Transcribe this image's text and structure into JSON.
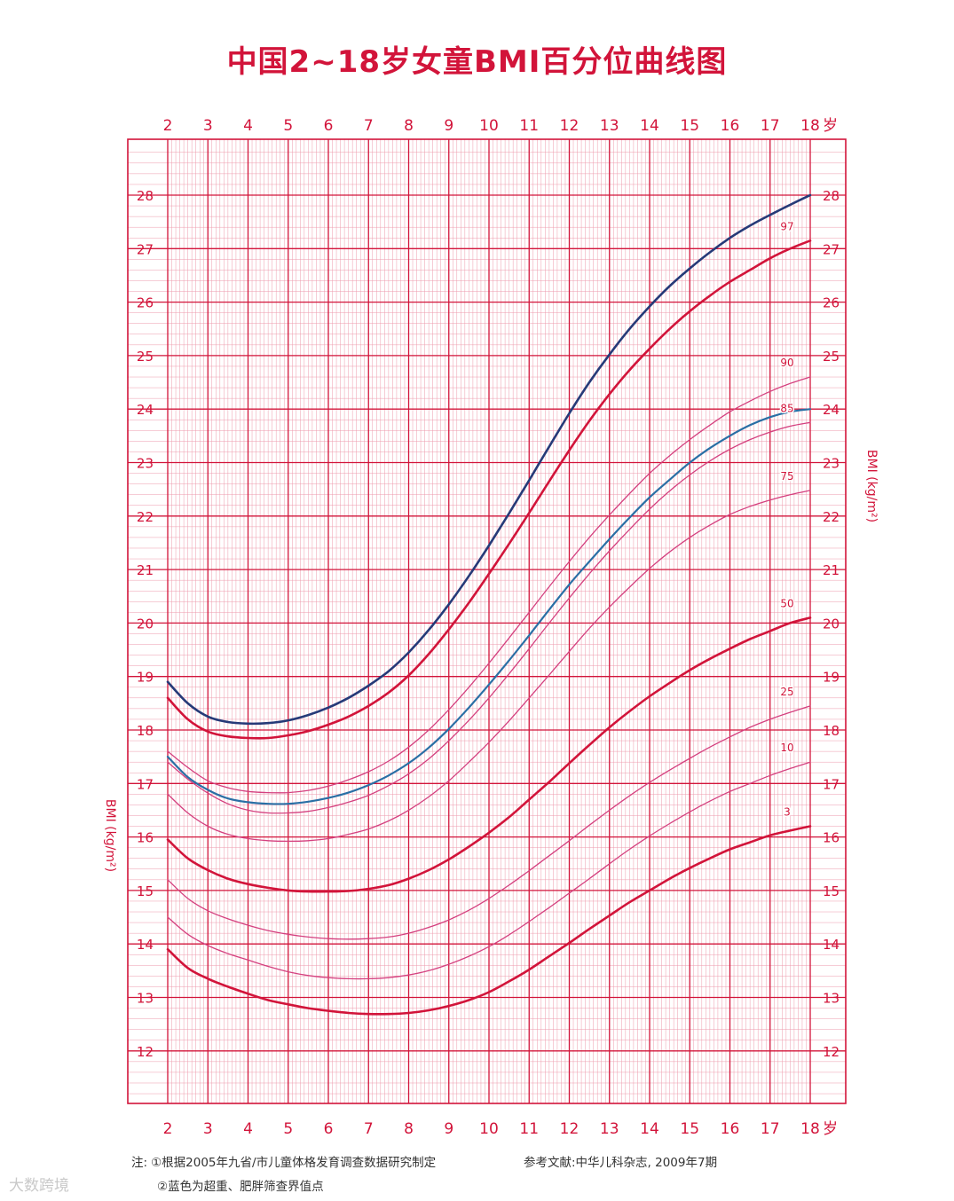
{
  "title": "中国2~18岁女童BMI百分位曲线图",
  "chart_data": {
    "type": "line",
    "title": "中国2~18岁女童BMI百分位曲线图",
    "xlabel": "岁",
    "ylabel": "BMI (kg/m²)",
    "xlim": [
      2,
      18
    ],
    "ylim": [
      11.3,
      29.3
    ],
    "x_ticks": [
      2,
      3,
      4,
      5,
      6,
      7,
      8,
      9,
      10,
      11,
      12,
      13,
      14,
      15,
      16,
      17,
      18
    ],
    "y_ticks": [
      12,
      13,
      14,
      15,
      16,
      17,
      18,
      19,
      20,
      21,
      22,
      23,
      24,
      25,
      26,
      27,
      28
    ],
    "grid": true,
    "x": [
      2,
      2.5,
      3,
      3.5,
      4,
      4.5,
      5,
      5.5,
      6,
      6.5,
      7,
      7.5,
      8,
      8.5,
      9,
      9.5,
      10,
      10.5,
      11,
      11.5,
      12,
      12.5,
      13,
      13.5,
      14,
      14.5,
      15,
      15.5,
      16,
      16.5,
      17,
      17.5,
      18
    ],
    "series": [
      {
        "name": "肥胖",
        "color": "#263a78",
        "width": 2.6,
        "values": [
          18.9,
          18.5,
          18.25,
          18.15,
          18.12,
          18.13,
          18.18,
          18.28,
          18.42,
          18.6,
          18.83,
          19.1,
          19.45,
          19.87,
          20.35,
          20.88,
          21.45,
          22.05,
          22.67,
          23.3,
          23.92,
          24.5,
          25.02,
          25.5,
          25.92,
          26.3,
          26.63,
          26.93,
          27.2,
          27.43,
          27.63,
          27.82,
          28.0
        ]
      },
      {
        "name": "97",
        "label": "97",
        "color": "#d2143a",
        "width": 2.6,
        "values": [
          18.6,
          18.2,
          17.97,
          17.88,
          17.85,
          17.85,
          17.9,
          17.98,
          18.1,
          18.25,
          18.45,
          18.7,
          19.02,
          19.42,
          19.88,
          20.38,
          20.92,
          21.48,
          22.06,
          22.65,
          23.23,
          23.78,
          24.28,
          24.73,
          25.13,
          25.5,
          25.83,
          26.12,
          26.38,
          26.6,
          26.82,
          27.0,
          27.15
        ]
      },
      {
        "name": "90",
        "label": "90",
        "color": "#d4407f",
        "width": 1.3,
        "values": [
          17.6,
          17.3,
          17.05,
          16.92,
          16.85,
          16.83,
          16.83,
          16.87,
          16.95,
          17.07,
          17.22,
          17.42,
          17.68,
          18.0,
          18.38,
          18.8,
          19.25,
          19.72,
          20.2,
          20.68,
          21.15,
          21.6,
          22.02,
          22.42,
          22.8,
          23.13,
          23.43,
          23.7,
          23.95,
          24.15,
          24.33,
          24.48,
          24.6
        ]
      },
      {
        "name": "超重",
        "color": "#2a6fa5",
        "width": 2.2,
        "values": [
          17.5,
          17.12,
          16.88,
          16.72,
          16.65,
          16.62,
          16.62,
          16.66,
          16.73,
          16.83,
          16.97,
          17.15,
          17.38,
          17.67,
          18.02,
          18.42,
          18.85,
          19.3,
          19.77,
          20.25,
          20.72,
          21.15,
          21.57,
          21.97,
          22.35,
          22.68,
          23.0,
          23.27,
          23.5,
          23.7,
          23.85,
          23.95,
          24.0
        ]
      },
      {
        "name": "85",
        "label": "85",
        "color": "#d4407f",
        "width": 1.3,
        "values": [
          17.4,
          17.08,
          16.82,
          16.62,
          16.5,
          16.45,
          16.45,
          16.48,
          16.55,
          16.65,
          16.78,
          16.96,
          17.18,
          17.46,
          17.8,
          18.18,
          18.6,
          19.05,
          19.52,
          20.0,
          20.47,
          20.92,
          21.35,
          21.75,
          22.13,
          22.47,
          22.77,
          23.03,
          23.25,
          23.43,
          23.57,
          23.68,
          23.75
        ]
      },
      {
        "name": "75",
        "label": "75",
        "color": "#d4407f",
        "width": 1.3,
        "values": [
          16.8,
          16.45,
          16.2,
          16.05,
          15.97,
          15.93,
          15.92,
          15.93,
          15.97,
          16.05,
          16.15,
          16.3,
          16.5,
          16.75,
          17.05,
          17.4,
          17.77,
          18.17,
          18.6,
          19.03,
          19.47,
          19.9,
          20.3,
          20.67,
          21.02,
          21.33,
          21.6,
          21.83,
          22.03,
          22.18,
          22.3,
          22.4,
          22.48
        ]
      },
      {
        "name": "50",
        "label": "50",
        "color": "#d2143a",
        "width": 2.6,
        "values": [
          15.95,
          15.6,
          15.38,
          15.22,
          15.12,
          15.05,
          15.0,
          14.98,
          14.98,
          14.99,
          15.03,
          15.1,
          15.22,
          15.38,
          15.58,
          15.82,
          16.08,
          16.37,
          16.7,
          17.03,
          17.38,
          17.72,
          18.05,
          18.35,
          18.63,
          18.88,
          19.12,
          19.33,
          19.52,
          19.7,
          19.85,
          20.0,
          20.1
        ]
      },
      {
        "name": "25",
        "label": "25",
        "color": "#d4407f",
        "width": 1.3,
        "values": [
          15.2,
          14.85,
          14.62,
          14.47,
          14.35,
          14.25,
          14.18,
          14.13,
          14.1,
          14.09,
          14.1,
          14.13,
          14.2,
          14.31,
          14.45,
          14.63,
          14.85,
          15.1,
          15.37,
          15.65,
          15.93,
          16.22,
          16.5,
          16.77,
          17.02,
          17.25,
          17.47,
          17.68,
          17.87,
          18.05,
          18.2,
          18.33,
          18.45
        ]
      },
      {
        "name": "10",
        "label": "10",
        "color": "#d4407f",
        "width": 1.3,
        "values": [
          14.5,
          14.18,
          13.97,
          13.82,
          13.7,
          13.58,
          13.48,
          13.41,
          13.37,
          13.35,
          13.35,
          13.37,
          13.42,
          13.5,
          13.62,
          13.77,
          13.95,
          14.17,
          14.42,
          14.68,
          14.95,
          15.22,
          15.5,
          15.77,
          16.02,
          16.25,
          16.47,
          16.67,
          16.85,
          17.0,
          17.15,
          17.28,
          17.4
        ]
      },
      {
        "name": "3",
        "label": "3",
        "color": "#d2143a",
        "width": 2.6,
        "values": [
          13.9,
          13.55,
          13.35,
          13.2,
          13.07,
          12.95,
          12.87,
          12.8,
          12.75,
          12.71,
          12.69,
          12.69,
          12.71,
          12.76,
          12.84,
          12.95,
          13.1,
          13.3,
          13.52,
          13.77,
          14.02,
          14.28,
          14.53,
          14.78,
          15.0,
          15.22,
          15.42,
          15.6,
          15.77,
          15.9,
          16.03,
          16.12,
          16.2
        ]
      }
    ]
  },
  "notes": {
    "prefix": "注:",
    "line1": "①根据2005年九省/市儿童体格发育调查数据研究制定",
    "line2": "②蓝色为超重、肥胖筛查界值点",
    "reference": "参考文献:中华儿科杂志, 2009年7期"
  },
  "watermark": "大数跨境",
  "colors": {
    "grid_major": "#d2143a",
    "grid_minor": "#ee9aac",
    "text": "#d2143a"
  }
}
